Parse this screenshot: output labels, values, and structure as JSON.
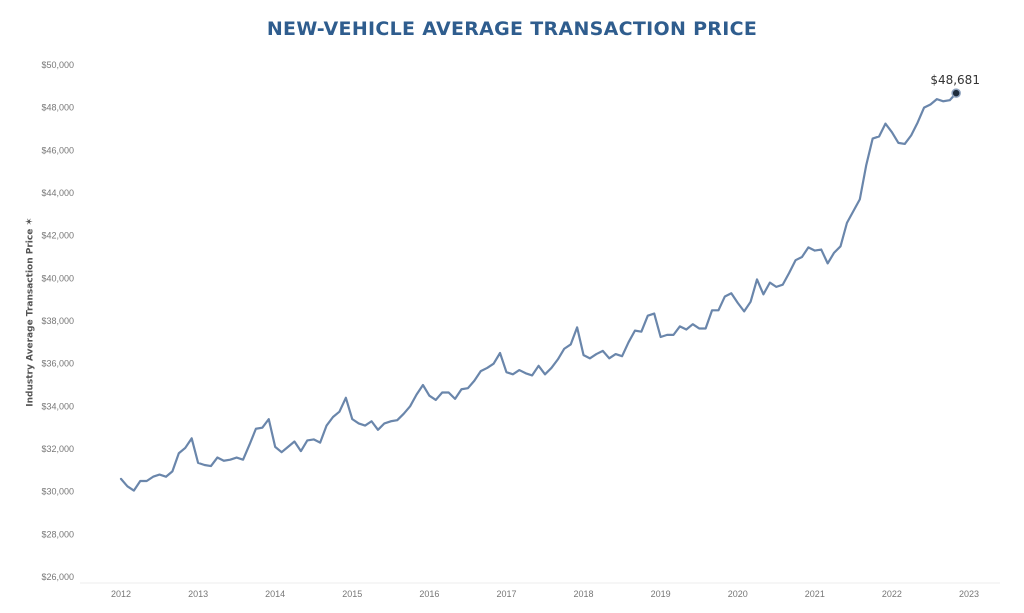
{
  "chart_data": {
    "type": "line",
    "title": "NEW-VEHICLE AVERAGE TRANSACTION PRICE",
    "ylabel": "Industry Average Transaction Price",
    "ylabel_icon": "sort-icon",
    "xlabel": "",
    "ylim": [
      26000,
      50000
    ],
    "yticks": [
      26000,
      28000,
      30000,
      32000,
      34000,
      36000,
      38000,
      40000,
      42000,
      44000,
      46000,
      48000,
      50000
    ],
    "ytick_labels": [
      "$26,000",
      "$28,000",
      "$30,000",
      "$32,000",
      "$34,000",
      "$36,000",
      "$38,000",
      "$40,000",
      "$42,000",
      "$44,000",
      "$46,000",
      "$48,000",
      "$50,000"
    ],
    "xticks": [
      "2012",
      "2013",
      "2014",
      "2015",
      "2016",
      "2017",
      "2018",
      "2019",
      "2020",
      "2021",
      "2022",
      "2023"
    ],
    "x_start": "2012-01",
    "grid": false,
    "line_color": "#6a86ab",
    "marker_color": "#1f2d3d",
    "series": [
      {
        "values": [
          30600,
          30250,
          30050,
          30500,
          30500,
          30700,
          30800,
          30700,
          30950,
          31800,
          32050,
          32500,
          31350,
          31250,
          31200,
          31600,
          31450,
          31500,
          31600,
          31500,
          32200,
          32950,
          33000,
          33400,
          32100,
          31850,
          32100,
          32350,
          31900,
          32400,
          32450,
          32300,
          33100,
          33500,
          33750,
          34400,
          33400,
          33200,
          33100,
          33300,
          32900,
          33200,
          33300,
          33350,
          33650,
          34000,
          34550,
          35000,
          34500,
          34300,
          34650,
          34650,
          34350,
          34800,
          34850,
          35200,
          35650,
          35800,
          36000,
          36500,
          35600,
          35500,
          35700,
          35550,
          35450,
          35900,
          35500,
          35800,
          36200,
          36700,
          36900,
          37700,
          36400,
          36250,
          36450,
          36600,
          36250,
          36450,
          36350,
          37000,
          37550,
          37500,
          38250,
          38350,
          37250,
          37350,
          37350,
          37750,
          37600,
          37850,
          37650,
          37650,
          38500,
          38500,
          39150,
          39300,
          38850,
          38450,
          38900,
          39950,
          39250,
          39800,
          39600,
          39700,
          40250,
          40850,
          41000,
          41450,
          41300,
          41350,
          40700,
          41200,
          41500,
          42600,
          43150,
          43700,
          45300,
          46550,
          46650,
          47250,
          46850,
          46350,
          46300,
          46700,
          47300,
          48000,
          48150,
          48400,
          48300,
          48350,
          48681
        ]
      }
    ],
    "last_point_label": "$48,681",
    "last_point_value": 48681
  }
}
